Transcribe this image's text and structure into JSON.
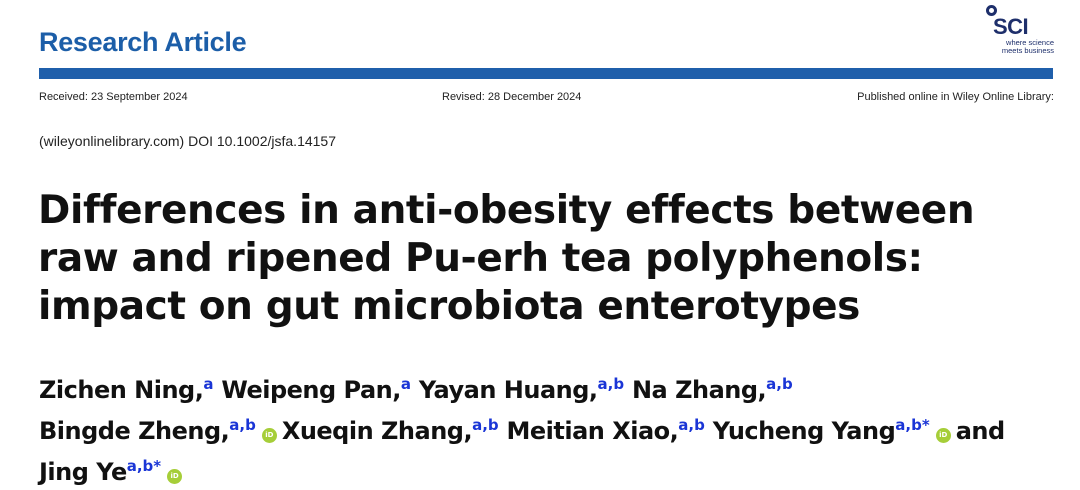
{
  "header": {
    "article_type": "Research Article"
  },
  "logo": {
    "name": "SCI",
    "tagline_line1": "where science",
    "tagline_line2": "meets business"
  },
  "meta": {
    "received": "Received: 23 September 2024",
    "revised": "Revised: 28 December 2024",
    "published": "Published online in Wiley Online Library:"
  },
  "doi": "(wileyonlinelibrary.com) DOI 10.1002/jsfa.14157",
  "title": {
    "line1": "Differences in anti-obesity effects between",
    "line2": "raw and ripened Pu-erh tea polyphenols:",
    "line3": "impact on gut microbiota enterotypes"
  },
  "authors": [
    {
      "name": "Zichen Ning,",
      "aff": "a"
    },
    {
      "name": "Weipeng Pan,",
      "aff": "a"
    },
    {
      "name": "Yayan Huang,",
      "aff": "a,b"
    },
    {
      "name": "Na Zhang,",
      "aff": "a,b"
    },
    {
      "name": "Bingde Zheng,",
      "aff": "a,b"
    },
    {
      "name": "Xueqin Zhang,",
      "aff": "a,b"
    },
    {
      "name": "Meitian Xiao,",
      "aff": "a,b"
    },
    {
      "name": "Yucheng Yang",
      "aff": "a,b*"
    },
    {
      "name": "Jing Ye",
      "aff": "a,b*"
    }
  ],
  "conjunction": "and",
  "orcid_label": "iD",
  "colors": {
    "header_blue": "#1c5ea8",
    "rule_blue": "#1f5fab",
    "affiliation_blue": "#1a35d6",
    "orcid_green": "#a6ce39",
    "logo_navy": "#1e2f6b"
  }
}
